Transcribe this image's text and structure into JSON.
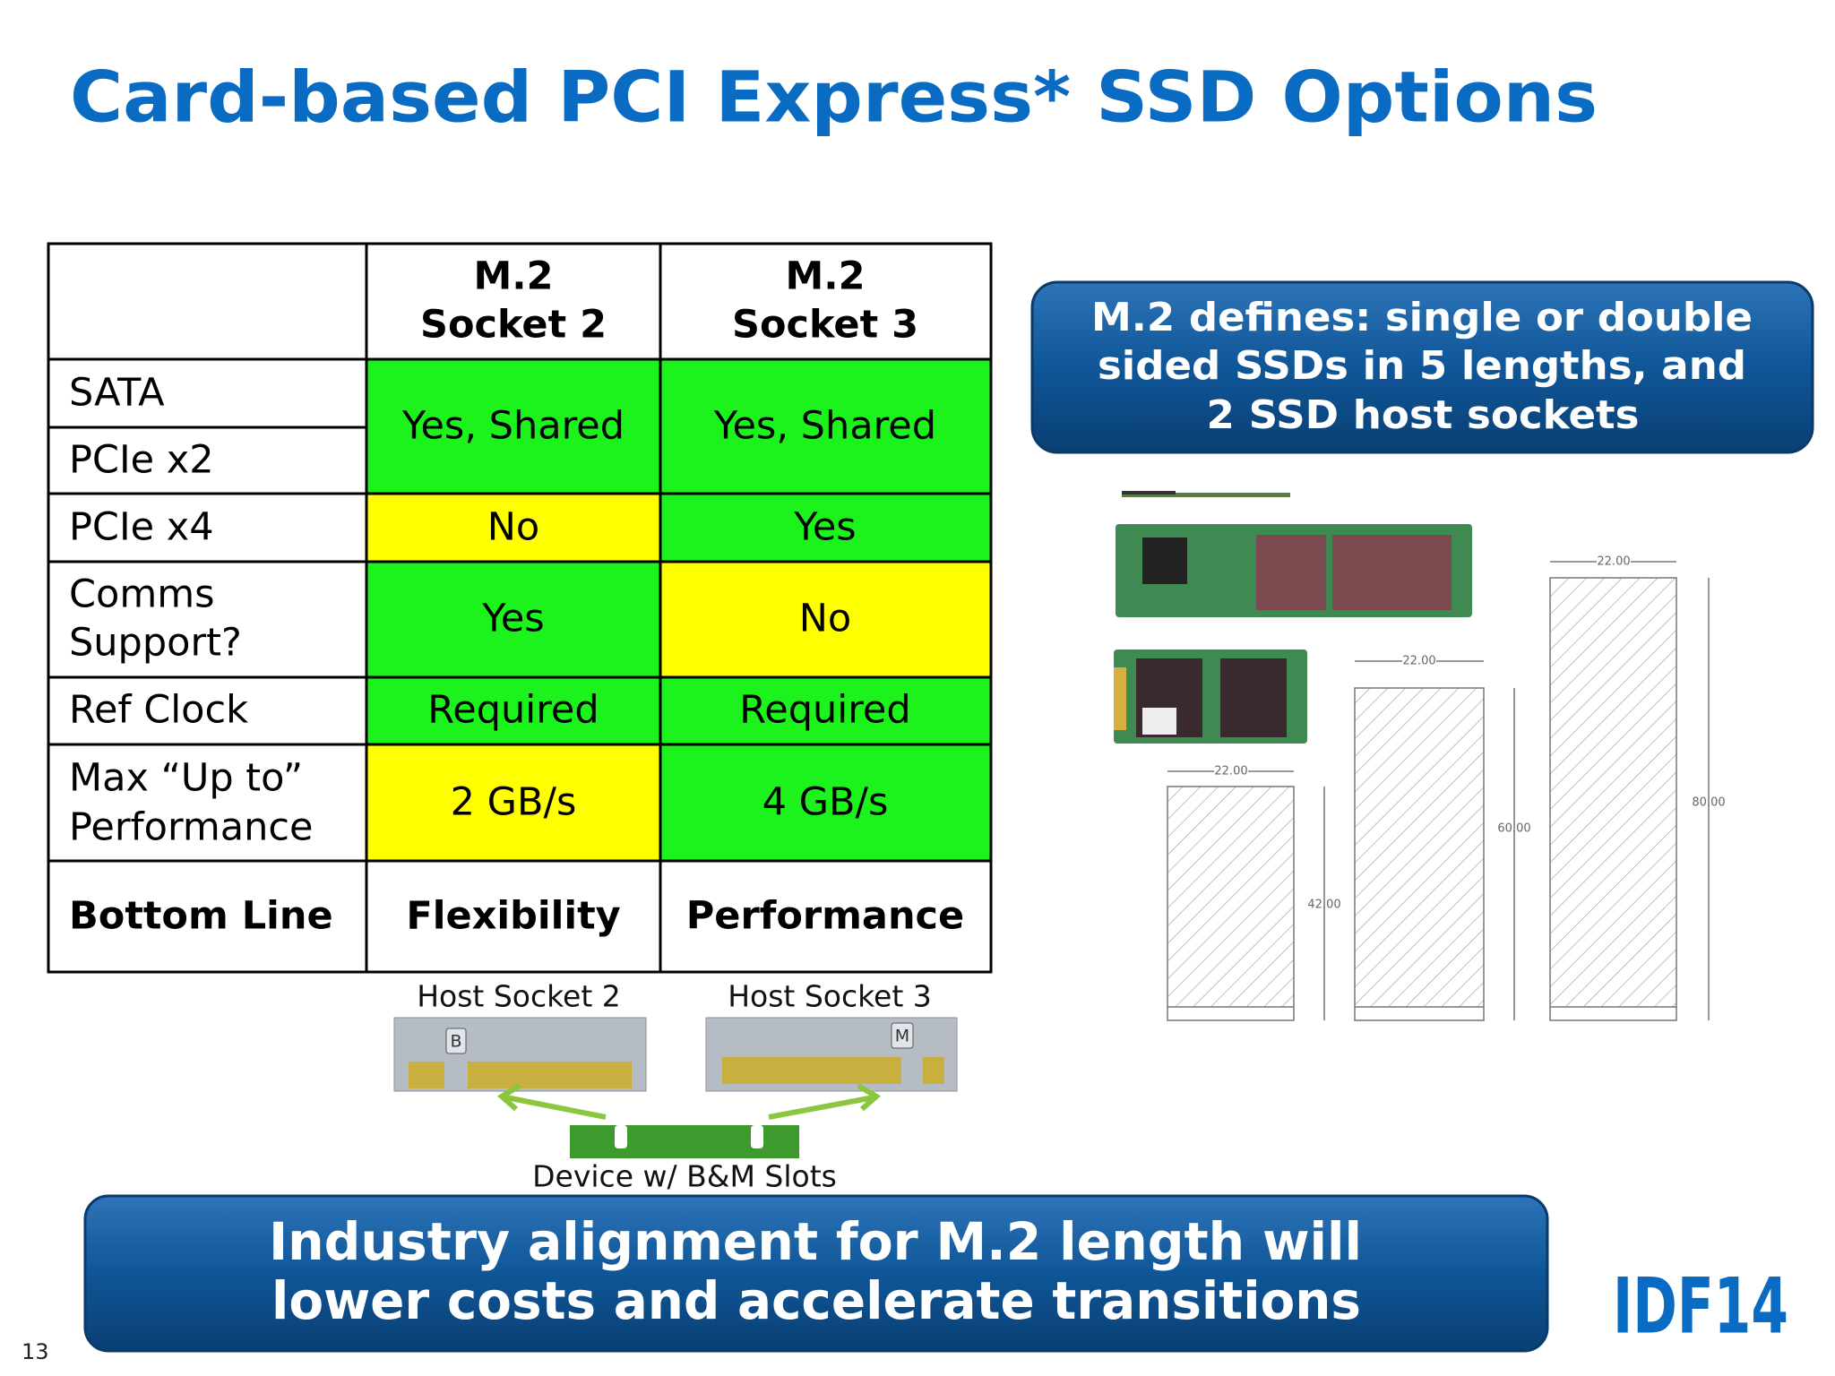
{
  "header": {
    "title": "Card-based PCI Express* SSD Options"
  },
  "table": {
    "header": [
      [
        "M.2",
        "Socket 2"
      ],
      [
        "M.2",
        "Socket 3"
      ]
    ],
    "rows": [
      {
        "labels": [
          "SATA",
          "PCIe x2"
        ],
        "cells": [
          {
            "text": "Yes, Shared",
            "fill": "#1cf21c"
          },
          {
            "text": "Yes, Shared",
            "fill": "#1cf21c"
          }
        ]
      },
      {
        "labels": [
          "PCIe x4"
        ],
        "cells": [
          {
            "text": "No",
            "fill": "#ffff00"
          },
          {
            "text": "Yes",
            "fill": "#1cf21c"
          }
        ]
      },
      {
        "labels": [
          "Comms",
          "Support?"
        ],
        "cells": [
          {
            "text": "Yes",
            "fill": "#1cf21c"
          },
          {
            "text": "No",
            "fill": "#ffff00"
          }
        ]
      },
      {
        "labels": [
          "Ref Clock"
        ],
        "cells": [
          {
            "text": "Required",
            "fill": "#1cf21c"
          },
          {
            "text": "Required",
            "fill": "#1cf21c"
          }
        ]
      },
      {
        "labels": [
          "Max “Up to”",
          "Performance"
        ],
        "cells": [
          {
            "text": "2 GB/s",
            "fill": "#ffff00"
          },
          {
            "text": "4 GB/s",
            "fill": "#1cf21c"
          }
        ]
      },
      {
        "labels": [
          "Bottom Line"
        ],
        "cells": [
          {
            "text": "Flexibility",
            "fill": "#ffffff"
          },
          {
            "text": "Performance",
            "fill": "#ffffff"
          }
        ]
      }
    ]
  },
  "sockets": {
    "host_2": "Host Socket 2",
    "host_3": "Host Socket 3",
    "device": "Device w/ B&M Slots",
    "key_b": "B",
    "key_m": "M"
  },
  "callout": {
    "lines": [
      "M.2 defines: single or double",
      "sided SSDs in 5 lengths, and",
      "2 SSD host sockets"
    ]
  },
  "drawings": {
    "width_labels": [
      "22.00",
      "22.00",
      "22.00"
    ],
    "length_labels": [
      "42.00",
      "60.00",
      "80.00"
    ]
  },
  "banner": {
    "lines": [
      "Industry alignment for M.2 length will",
      "lower costs and accelerate transitions"
    ]
  },
  "footer": {
    "page": "13",
    "logo": "IDF14"
  }
}
